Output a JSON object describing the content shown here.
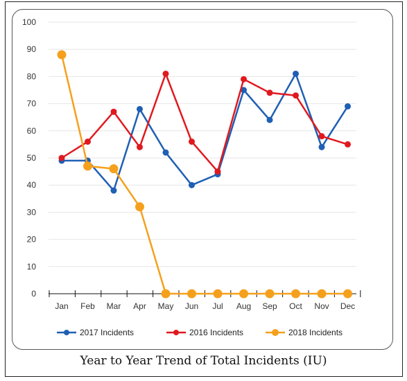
{
  "chart_data": {
    "type": "line",
    "title": "",
    "xlabel": "",
    "ylabel": "",
    "ylim": [
      0,
      100
    ],
    "yticks": [
      0,
      10,
      20,
      30,
      40,
      50,
      60,
      70,
      80,
      90,
      100
    ],
    "grid": true,
    "legend_position": "bottom",
    "categories": [
      "Jan",
      "Feb",
      "Mar",
      "Apr",
      "May",
      "Jun",
      "Jul",
      "Aug",
      "Sep",
      "Oct",
      "Nov",
      "Dec"
    ],
    "series": [
      {
        "name": "2017 Incidents",
        "color": "#1f5fb4",
        "marker_size": "small",
        "values": [
          49,
          49,
          38,
          68,
          52,
          40,
          44,
          75,
          64,
          81,
          54,
          69
        ]
      },
      {
        "name": "2016 Incidents",
        "color": "#e0191f",
        "marker_size": "small",
        "values": [
          50,
          56,
          67,
          54,
          81,
          56,
          45,
          79,
          74,
          73,
          58,
          55
        ]
      },
      {
        "name": "2018 Incidents",
        "color": "#f5a01c",
        "marker_size": "large",
        "values": [
          88,
          47,
          46,
          32,
          0,
          0,
          0,
          0,
          0,
          0,
          0,
          0
        ]
      }
    ]
  },
  "caption": "Year to Year Trend of Total Incidents (IU)"
}
